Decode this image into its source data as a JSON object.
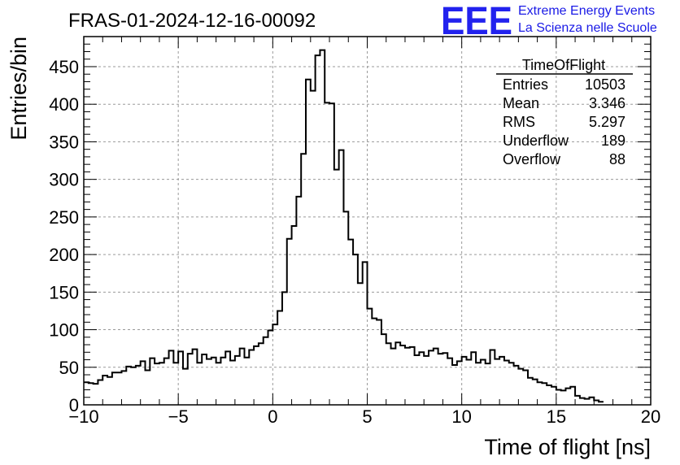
{
  "chart_data": {
    "type": "histogram",
    "title": "FRAS-01-2024-12-16-00092",
    "xlabel": "Time of flight [ns]",
    "ylabel": "Entries/bin",
    "xlim": [
      -10,
      20
    ],
    "ylim": [
      0,
      490
    ],
    "bin_width": 0.25,
    "x_ticks": [
      -10,
      -5,
      0,
      5,
      10,
      15,
      20
    ],
    "y_ticks": [
      0,
      50,
      100,
      150,
      200,
      250,
      300,
      350,
      400,
      450
    ],
    "grid": true,
    "values": [
      30,
      29,
      28,
      33,
      39,
      37,
      43,
      43,
      45,
      51,
      50,
      52,
      58,
      46,
      62,
      55,
      56,
      62,
      72,
      56,
      71,
      48,
      68,
      74,
      56,
      67,
      61,
      63,
      56,
      63,
      71,
      59,
      65,
      75,
      63,
      73,
      78,
      82,
      90,
      99,
      107,
      125,
      150,
      221,
      238,
      277,
      334,
      433,
      418,
      465,
      472,
      402,
      401,
      313,
      339,
      257,
      220,
      200,
      162,
      190,
      128,
      115,
      113,
      94,
      82,
      75,
      83,
      79,
      76,
      77,
      66,
      70,
      65,
      72,
      75,
      68,
      69,
      62,
      53,
      58,
      64,
      60,
      70,
      56,
      60,
      55,
      73,
      61,
      64,
      59,
      56,
      52,
      48,
      46,
      36,
      34,
      30,
      29,
      26,
      24,
      20,
      19,
      22,
      24,
      12,
      9,
      8,
      10,
      6,
      4
    ],
    "stats_box": {
      "name": "TimeOfFlight",
      "entries": [
        {
          "label": "Entries",
          "value": "10503"
        },
        {
          "label": "Mean",
          "value": "3.346"
        },
        {
          "label": "RMS",
          "value": "5.297"
        },
        {
          "label": "Underflow",
          "value": "189"
        },
        {
          "label": "Overflow",
          "value": "88"
        }
      ]
    },
    "logo": {
      "mark": "EEE",
      "line1": "Extreme Energy Events",
      "line2": "La Scienza nelle Scuole",
      "color": "#2222ee"
    }
  }
}
